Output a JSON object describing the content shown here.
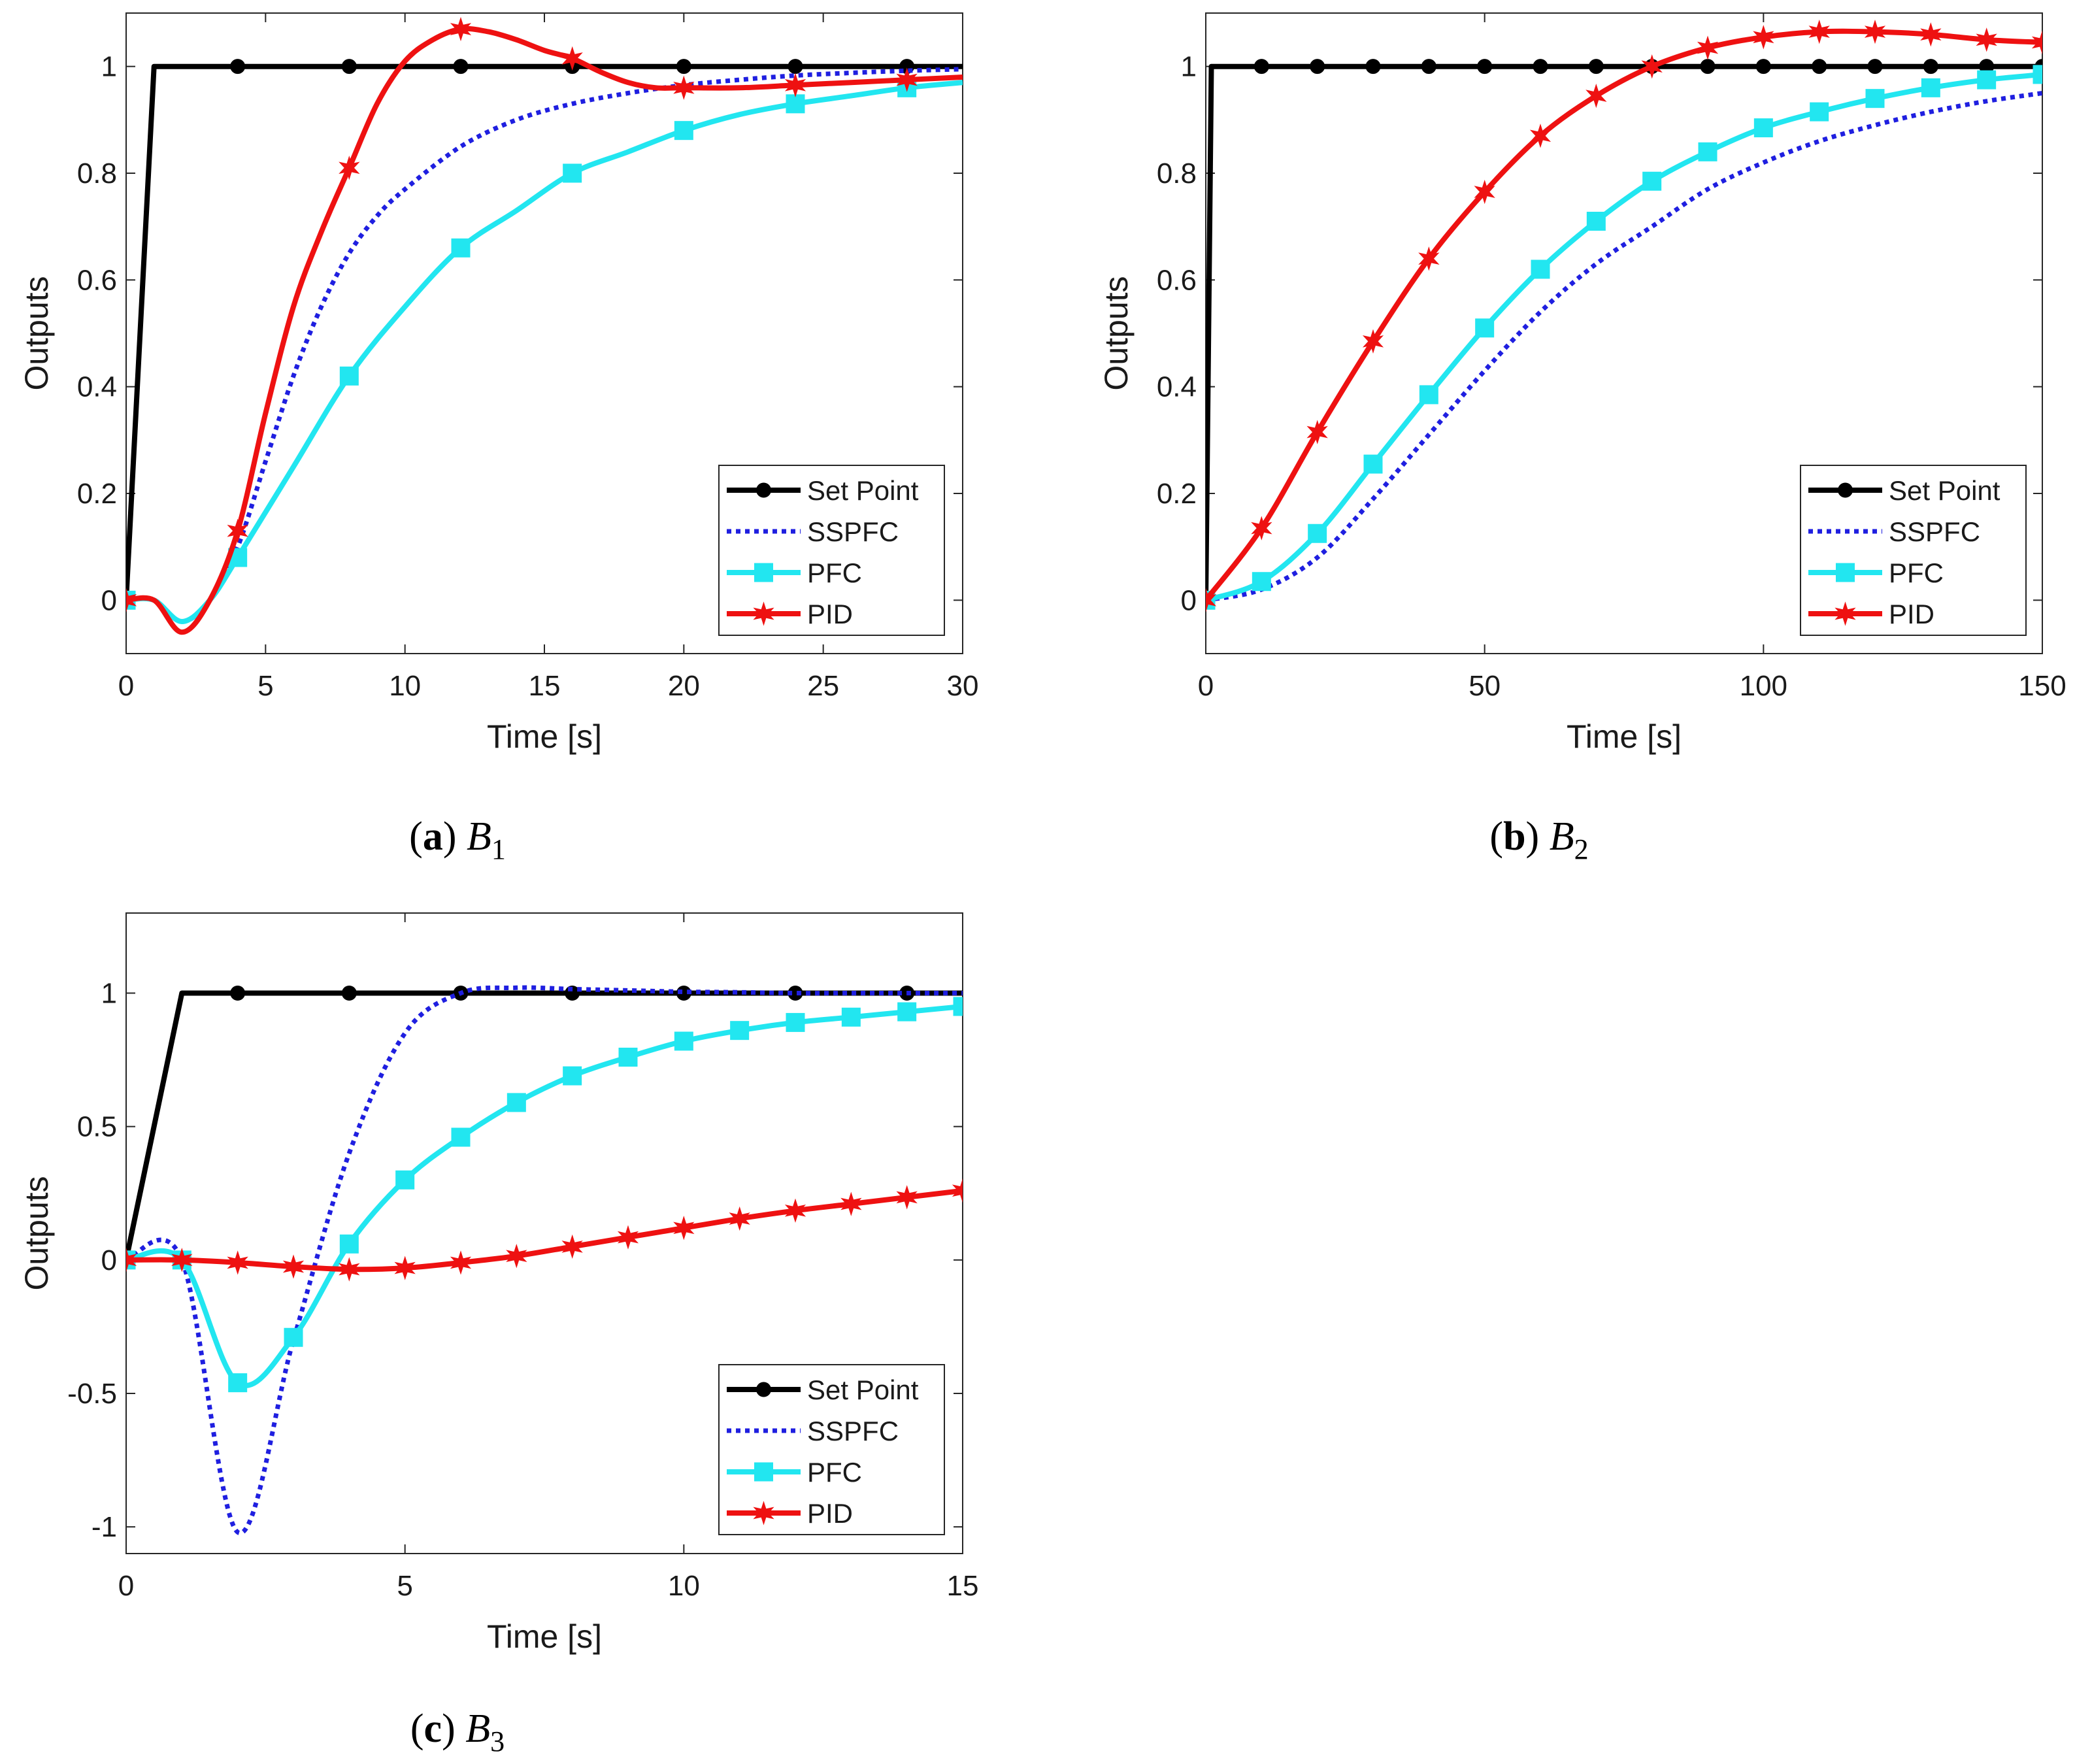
{
  "chart_data": [
    {
      "type": "line",
      "caption_letter": "a",
      "caption_symbol": "B",
      "caption_subscript": "1",
      "xlabel": "Time [s]",
      "ylabel": "Outputs",
      "xlim": [
        0,
        30
      ],
      "ylim": [
        -0.1,
        1.1
      ],
      "xticks": [
        0,
        5,
        10,
        15,
        20,
        25,
        30
      ],
      "yticks": [
        0,
        0.2,
        0.4,
        0.6,
        0.8,
        1
      ],
      "ytick_labels": [
        "0",
        "0.2",
        "0.4",
        "0.6",
        "0.8",
        "1"
      ],
      "legend_position": "bottom-right",
      "series": [
        {
          "name": "Set Point",
          "color": "#000000",
          "style": "solid",
          "marker": "circle",
          "x": [
            0,
            1,
            4,
            8,
            12,
            16,
            20,
            24,
            28,
            30
          ],
          "y": [
            0,
            1,
            1,
            1,
            1,
            1,
            1,
            1,
            1,
            1
          ],
          "markers_x": [
            4,
            8,
            12,
            16,
            20,
            24,
            28
          ]
        },
        {
          "name": "SSPFC",
          "color": "#1f1fe0",
          "style": "dotted",
          "marker": "none",
          "x": [
            0,
            1,
            2,
            3,
            4,
            5,
            6,
            7,
            8,
            9,
            10,
            12,
            14,
            16,
            18,
            20,
            22,
            24,
            26,
            28,
            30
          ],
          "y": [
            0,
            0,
            -0.04,
            0.0,
            0.1,
            0.26,
            0.42,
            0.55,
            0.65,
            0.72,
            0.77,
            0.85,
            0.9,
            0.93,
            0.95,
            0.965,
            0.975,
            0.983,
            0.988,
            0.992,
            0.995
          ]
        },
        {
          "name": "PFC",
          "color": "#22e6f0",
          "style": "solid",
          "marker": "square",
          "x": [
            0,
            1,
            2,
            3,
            4,
            6,
            8,
            10,
            12,
            14,
            16,
            18,
            20,
            22,
            24,
            26,
            28,
            30
          ],
          "y": [
            0,
            0,
            -0.04,
            0.0,
            0.08,
            0.25,
            0.42,
            0.55,
            0.66,
            0.73,
            0.8,
            0.84,
            0.88,
            0.91,
            0.93,
            0.945,
            0.96,
            0.97
          ],
          "markers_x": [
            0,
            4,
            8,
            12,
            16,
            20,
            24,
            28
          ]
        },
        {
          "name": "PID",
          "color": "#ee1111",
          "style": "solid",
          "marker": "star",
          "x": [
            0,
            1,
            2,
            3,
            4,
            5,
            6,
            7,
            8,
            9,
            10,
            11,
            12,
            13,
            14,
            15,
            16,
            17,
            18,
            19,
            20,
            22,
            24,
            26,
            28,
            30
          ],
          "y": [
            0,
            0,
            -0.06,
            0.0,
            0.13,
            0.35,
            0.55,
            0.69,
            0.81,
            0.93,
            1.01,
            1.05,
            1.07,
            1.065,
            1.05,
            1.03,
            1.015,
            0.99,
            0.97,
            0.96,
            0.96,
            0.96,
            0.965,
            0.97,
            0.975,
            0.98
          ],
          "markers_x": [
            0,
            4,
            8,
            12,
            16,
            20,
            24,
            28
          ]
        }
      ]
    },
    {
      "type": "line",
      "caption_letter": "b",
      "caption_symbol": "B",
      "caption_subscript": "2",
      "xlabel": "Time [s]",
      "ylabel": "Outputs",
      "xlim": [
        0,
        150
      ],
      "ylim": [
        -0.1,
        1.1
      ],
      "xticks": [
        0,
        50,
        100,
        150
      ],
      "yticks": [
        0,
        0.2,
        0.4,
        0.6,
        0.8,
        1
      ],
      "ytick_labels": [
        "0",
        "0.2",
        "0.4",
        "0.6",
        "0.8",
        "1"
      ],
      "legend_position": "bottom-right",
      "series": [
        {
          "name": "Set Point",
          "color": "#000000",
          "style": "solid",
          "marker": "circle",
          "x": [
            0,
            1,
            150
          ],
          "y": [
            0,
            1,
            1
          ],
          "markers_x": [
            10,
            20,
            30,
            40,
            50,
            60,
            70,
            80,
            90,
            100,
            110,
            120,
            130,
            140,
            150
          ]
        },
        {
          "name": "SSPFC",
          "color": "#1f1fe0",
          "style": "dotted",
          "marker": "none",
          "x": [
            0,
            10,
            20,
            30,
            40,
            50,
            60,
            70,
            80,
            90,
            100,
            110,
            120,
            130,
            140,
            150
          ],
          "y": [
            0,
            0.02,
            0.08,
            0.19,
            0.31,
            0.43,
            0.54,
            0.63,
            0.7,
            0.77,
            0.82,
            0.86,
            0.89,
            0.915,
            0.935,
            0.95
          ]
        },
        {
          "name": "PFC",
          "color": "#22e6f0",
          "style": "solid",
          "marker": "square",
          "x": [
            0,
            10,
            20,
            30,
            40,
            50,
            60,
            70,
            80,
            90,
            100,
            110,
            120,
            130,
            140,
            150
          ],
          "y": [
            0,
            0.035,
            0.125,
            0.255,
            0.385,
            0.51,
            0.62,
            0.71,
            0.785,
            0.84,
            0.885,
            0.915,
            0.94,
            0.96,
            0.975,
            0.985
          ],
          "markers_x": [
            0,
            10,
            20,
            30,
            40,
            50,
            60,
            70,
            80,
            90,
            100,
            110,
            120,
            130,
            140,
            150
          ]
        },
        {
          "name": "PID",
          "color": "#ee1111",
          "style": "solid",
          "marker": "star",
          "x": [
            0,
            10,
            20,
            30,
            40,
            50,
            60,
            70,
            80,
            90,
            100,
            110,
            120,
            130,
            140,
            150
          ],
          "y": [
            0,
            0.135,
            0.315,
            0.485,
            0.64,
            0.765,
            0.87,
            0.945,
            1.0,
            1.035,
            1.055,
            1.065,
            1.065,
            1.06,
            1.05,
            1.045
          ],
          "markers_x": [
            0,
            10,
            20,
            30,
            40,
            50,
            60,
            70,
            80,
            90,
            100,
            110,
            120,
            130,
            140,
            150
          ]
        }
      ]
    },
    {
      "type": "line",
      "caption_letter": "c",
      "caption_symbol": "B",
      "caption_subscript": "3",
      "xlabel": "Time [s]",
      "ylabel": "Outputs",
      "xlim": [
        0,
        15
      ],
      "ylim": [
        -1.1,
        1.3
      ],
      "xticks": [
        0,
        5,
        10,
        15
      ],
      "yticks": [
        -1,
        -0.5,
        0,
        0.5,
        1
      ],
      "ytick_labels": [
        "-1",
        "-0.5",
        "0",
        "0.5",
        "1"
      ],
      "legend_position": "bottom-right",
      "series": [
        {
          "name": "Set Point",
          "color": "#000000",
          "style": "solid",
          "marker": "circle",
          "x": [
            0,
            1,
            15
          ],
          "y": [
            0,
            1,
            1
          ],
          "markers_x": [
            2,
            4,
            6,
            8,
            10,
            12,
            14
          ]
        },
        {
          "name": "SSPFC",
          "color": "#1f1fe0",
          "style": "dotted",
          "marker": "none",
          "x": [
            0,
            1,
            2,
            3,
            4,
            5,
            6,
            7,
            8,
            9,
            10,
            11,
            12,
            13,
            14,
            15
          ],
          "y": [
            0,
            0,
            -1.02,
            -0.3,
            0.4,
            0.85,
            1.0,
            1.02,
            1.015,
            1.01,
            1.005,
            1.003,
            1.0,
            1.0,
            1.0,
            1.0
          ]
        },
        {
          "name": "PFC",
          "color": "#22e6f0",
          "style": "solid",
          "marker": "square",
          "x": [
            0,
            1,
            2,
            3,
            4,
            5,
            6,
            7,
            8,
            9,
            10,
            11,
            12,
            13,
            14,
            15
          ],
          "y": [
            0,
            0,
            -0.46,
            -0.29,
            0.06,
            0.3,
            0.46,
            0.59,
            0.69,
            0.76,
            0.82,
            0.86,
            0.89,
            0.91,
            0.93,
            0.95
          ],
          "markers_x": [
            0,
            1,
            2,
            3,
            4,
            5,
            6,
            7,
            8,
            9,
            10,
            11,
            12,
            13,
            14,
            15
          ]
        },
        {
          "name": "PID",
          "color": "#ee1111",
          "style": "solid",
          "marker": "star",
          "x": [
            0,
            1,
            2,
            3,
            4,
            5,
            6,
            7,
            8,
            9,
            10,
            11,
            12,
            13,
            14,
            15
          ],
          "y": [
            0,
            0,
            -0.01,
            -0.025,
            -0.035,
            -0.03,
            -0.01,
            0.015,
            0.05,
            0.085,
            0.12,
            0.155,
            0.185,
            0.21,
            0.235,
            0.26
          ],
          "markers_x": [
            0,
            1,
            2,
            3,
            4,
            5,
            6,
            7,
            8,
            9,
            10,
            11,
            12,
            13,
            14,
            15
          ]
        }
      ]
    }
  ]
}
